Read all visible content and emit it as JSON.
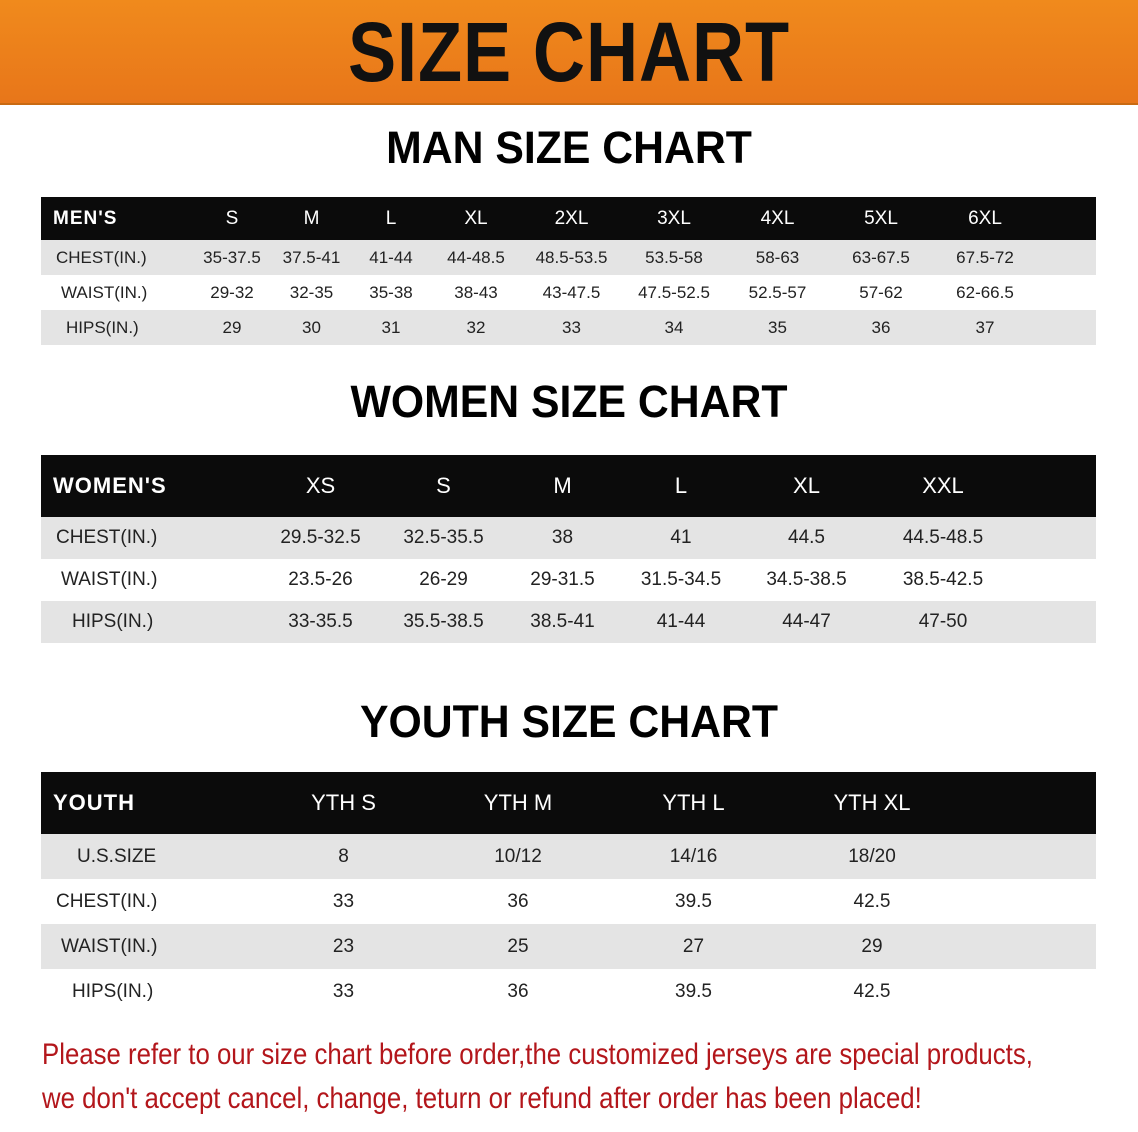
{
  "banner": {
    "title": "SIZE CHART",
    "color": "#ec7e1b"
  },
  "men": {
    "title": "MAN SIZE CHART",
    "header": [
      "MEN'S",
      "S",
      "M",
      "L",
      "XL",
      "2XL",
      "3XL",
      "4XL",
      "5XL",
      "6XL"
    ],
    "rows": [
      [
        "CHEST(IN.)",
        "35-37.5",
        "37.5-41",
        "41-44",
        "44-48.5",
        "48.5-53.5",
        "53.5-58",
        "58-63",
        "63-67.5",
        "67.5-72"
      ],
      [
        "WAIST(IN.)",
        "29-32",
        "32-35",
        "35-38",
        "38-43",
        "43-47.5",
        "47.5-52.5",
        "52.5-57",
        "57-62",
        "62-66.5"
      ],
      [
        "HIPS(IN.)",
        "29",
        "30",
        "31",
        "32",
        "33",
        "34",
        "35",
        "36",
        "37"
      ]
    ]
  },
  "women": {
    "title": "WOMEN SIZE CHART",
    "header": [
      "WOMEN'S",
      "XS",
      "S",
      "M",
      "L",
      "XL",
      "XXL"
    ],
    "rows": [
      [
        "CHEST(IN.)",
        "29.5-32.5",
        "32.5-35.5",
        "38",
        "41",
        "44.5",
        "44.5-48.5"
      ],
      [
        "WAIST(IN.)",
        "23.5-26",
        "26-29",
        "29-31.5",
        "31.5-34.5",
        "34.5-38.5",
        "38.5-42.5"
      ],
      [
        "HIPS(IN.)",
        "33-35.5",
        "35.5-38.5",
        "38.5-41",
        "41-44",
        "44-47",
        "47-50"
      ]
    ]
  },
  "youth": {
    "title": "YOUTH SIZE CHART",
    "header": [
      "YOUTH",
      "YTH S",
      "YTH M",
      "YTH L",
      "YTH XL"
    ],
    "rows": [
      [
        "U.S.SIZE",
        "8",
        "10/12",
        "14/16",
        "18/20"
      ],
      [
        "CHEST(IN.)",
        "33",
        "36",
        "39.5",
        "42.5"
      ],
      [
        "WAIST(IN.)",
        "23",
        "25",
        "27",
        "29"
      ],
      [
        "HIPS(IN.)",
        "33",
        "36",
        "39.5",
        "42.5"
      ]
    ]
  },
  "notice": {
    "line1": "Please refer to our size chart before order,the customized jerseys are special products,",
    "line2": "we don't accept cancel, change, teturn or refund after order has been placed!",
    "color": "#b3161b"
  }
}
